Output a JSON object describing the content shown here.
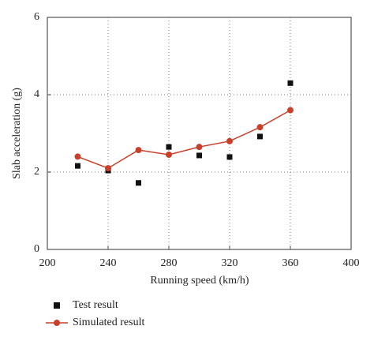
{
  "chart_data": {
    "type": "mixed",
    "x_label": "Running speed (km/h)",
    "y_label": "Slab acceleration (g)",
    "x": [
      220,
      240,
      260,
      280,
      300,
      320,
      340,
      360
    ],
    "series": [
      {
        "name": "Test result",
        "type": "scatter",
        "color": "#111111",
        "values": [
          2.16,
          2.04,
          1.72,
          2.65,
          2.43,
          2.39,
          2.92,
          4.3
        ]
      },
      {
        "name": "Simulated result",
        "type": "line",
        "color": "#c8402a",
        "values": [
          2.4,
          2.1,
          2.57,
          2.45,
          2.65,
          2.8,
          3.16,
          3.6
        ]
      }
    ],
    "xlim": [
      200,
      400
    ],
    "xticks": [
      200,
      240,
      280,
      320,
      360,
      400
    ],
    "ylim": [
      0,
      6
    ],
    "yticks": [
      0,
      2,
      4,
      6
    ],
    "grid": true
  }
}
